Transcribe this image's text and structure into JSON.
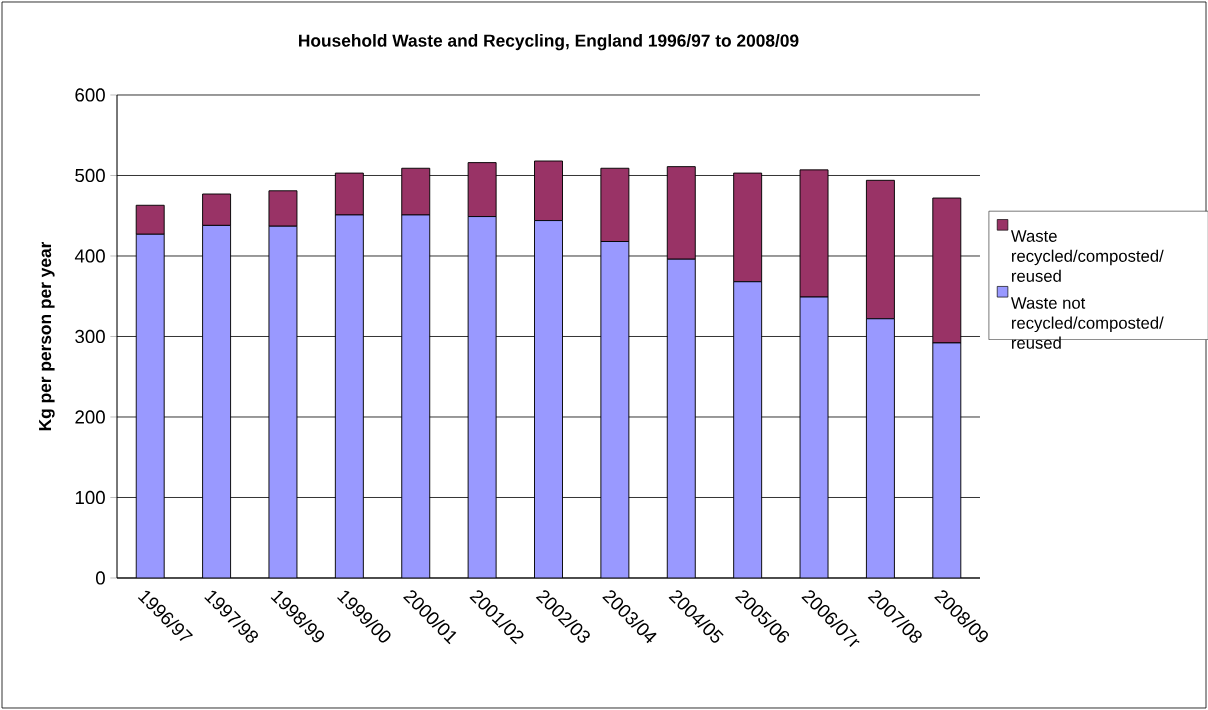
{
  "chart_data": {
    "type": "bar",
    "stacked": true,
    "title": "Household Waste and Recycling, England 1996/97 to 2008/09",
    "ylabel": "Kg per person per year",
    "categories": [
      "1996/97",
      "1997/98",
      "1998/99",
      "1999/00",
      "2000/01",
      "2001/02",
      "2002/03",
      "2003/04",
      "2004/05",
      "2005/06",
      "2006/07r",
      "2007/08",
      "2008/09"
    ],
    "series": [
      {
        "name": "Waste not recycled/composted/ reused",
        "color": "#9999ff",
        "values": [
          427,
          438,
          437,
          451,
          451,
          449,
          444,
          418,
          396,
          368,
          349,
          322,
          292
        ]
      },
      {
        "name": "Waste recycled/composted/ reused",
        "color": "#993366",
        "values": [
          36,
          39,
          44,
          52,
          58,
          67,
          74,
          91,
          115,
          135,
          158,
          172,
          180
        ]
      }
    ],
    "ylim": [
      0,
      600
    ],
    "yticks": [
      0,
      100,
      200,
      300,
      400,
      500,
      600
    ],
    "grid": "y",
    "legend": "right"
  }
}
